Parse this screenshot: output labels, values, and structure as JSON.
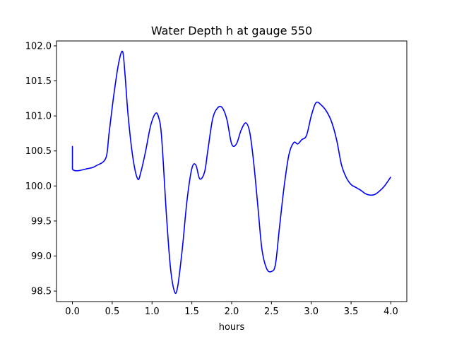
{
  "chart_data": {
    "type": "line",
    "title": "Water Depth h at gauge 550",
    "xlabel": "hours",
    "ylabel": "",
    "xlim": [
      -0.2,
      4.2
    ],
    "ylim": [
      98.35,
      102.07
    ],
    "xticks": [
      0.0,
      0.5,
      1.0,
      1.5,
      2.0,
      2.5,
      3.0,
      3.5,
      4.0
    ],
    "xtick_labels": [
      "0.0",
      "0.5",
      "1.0",
      "1.5",
      "2.0",
      "2.5",
      "3.0",
      "3.5",
      "4.0"
    ],
    "yticks": [
      98.5,
      99.0,
      99.5,
      100.0,
      100.5,
      101.0,
      101.5,
      102.0
    ],
    "ytick_labels": [
      "98.5",
      "99.0",
      "99.5",
      "100.0",
      "100.5",
      "101.0",
      "101.5",
      "102.0"
    ],
    "grid": false,
    "series": [
      {
        "color": "#0000ff",
        "x": [
          0.0,
          0.0,
          0.2,
          0.3,
          0.42,
          0.46,
          0.52,
          0.58,
          0.63,
          0.66,
          0.7,
          0.76,
          0.82,
          0.86,
          0.92,
          0.98,
          1.04,
          1.08,
          1.12,
          1.18,
          1.23,
          1.28,
          1.32,
          1.38,
          1.44,
          1.5,
          1.55,
          1.6,
          1.66,
          1.7,
          1.76,
          1.82,
          1.88,
          1.94,
          2.0,
          2.06,
          2.12,
          2.18,
          2.23,
          2.28,
          2.33,
          2.38,
          2.44,
          2.5,
          2.55,
          2.6,
          2.66,
          2.72,
          2.78,
          2.83,
          2.88,
          2.94,
          3.0,
          3.06,
          3.13,
          3.2,
          3.26,
          3.32,
          3.38,
          3.44,
          3.5,
          3.56,
          3.62,
          3.68,
          3.74,
          3.8,
          3.86,
          3.92,
          3.97,
          4.0
        ],
        "y": [
          100.57,
          100.24,
          100.25,
          100.29,
          100.4,
          100.75,
          101.3,
          101.75,
          101.92,
          101.6,
          101.0,
          100.4,
          100.1,
          100.2,
          100.5,
          100.85,
          101.03,
          100.99,
          100.7,
          99.6,
          98.85,
          98.5,
          98.55,
          99.1,
          99.8,
          100.25,
          100.3,
          100.1,
          100.2,
          100.5,
          100.95,
          101.11,
          101.12,
          100.95,
          100.6,
          100.6,
          100.8,
          100.9,
          100.75,
          100.3,
          99.7,
          99.1,
          98.82,
          98.78,
          98.88,
          99.4,
          100.0,
          100.45,
          100.62,
          100.6,
          100.66,
          100.72,
          101.0,
          101.19,
          101.15,
          101.05,
          100.9,
          100.65,
          100.3,
          100.12,
          100.02,
          99.98,
          99.94,
          99.89,
          99.87,
          99.88,
          99.93,
          100.0,
          100.08,
          100.13
        ]
      }
    ]
  }
}
